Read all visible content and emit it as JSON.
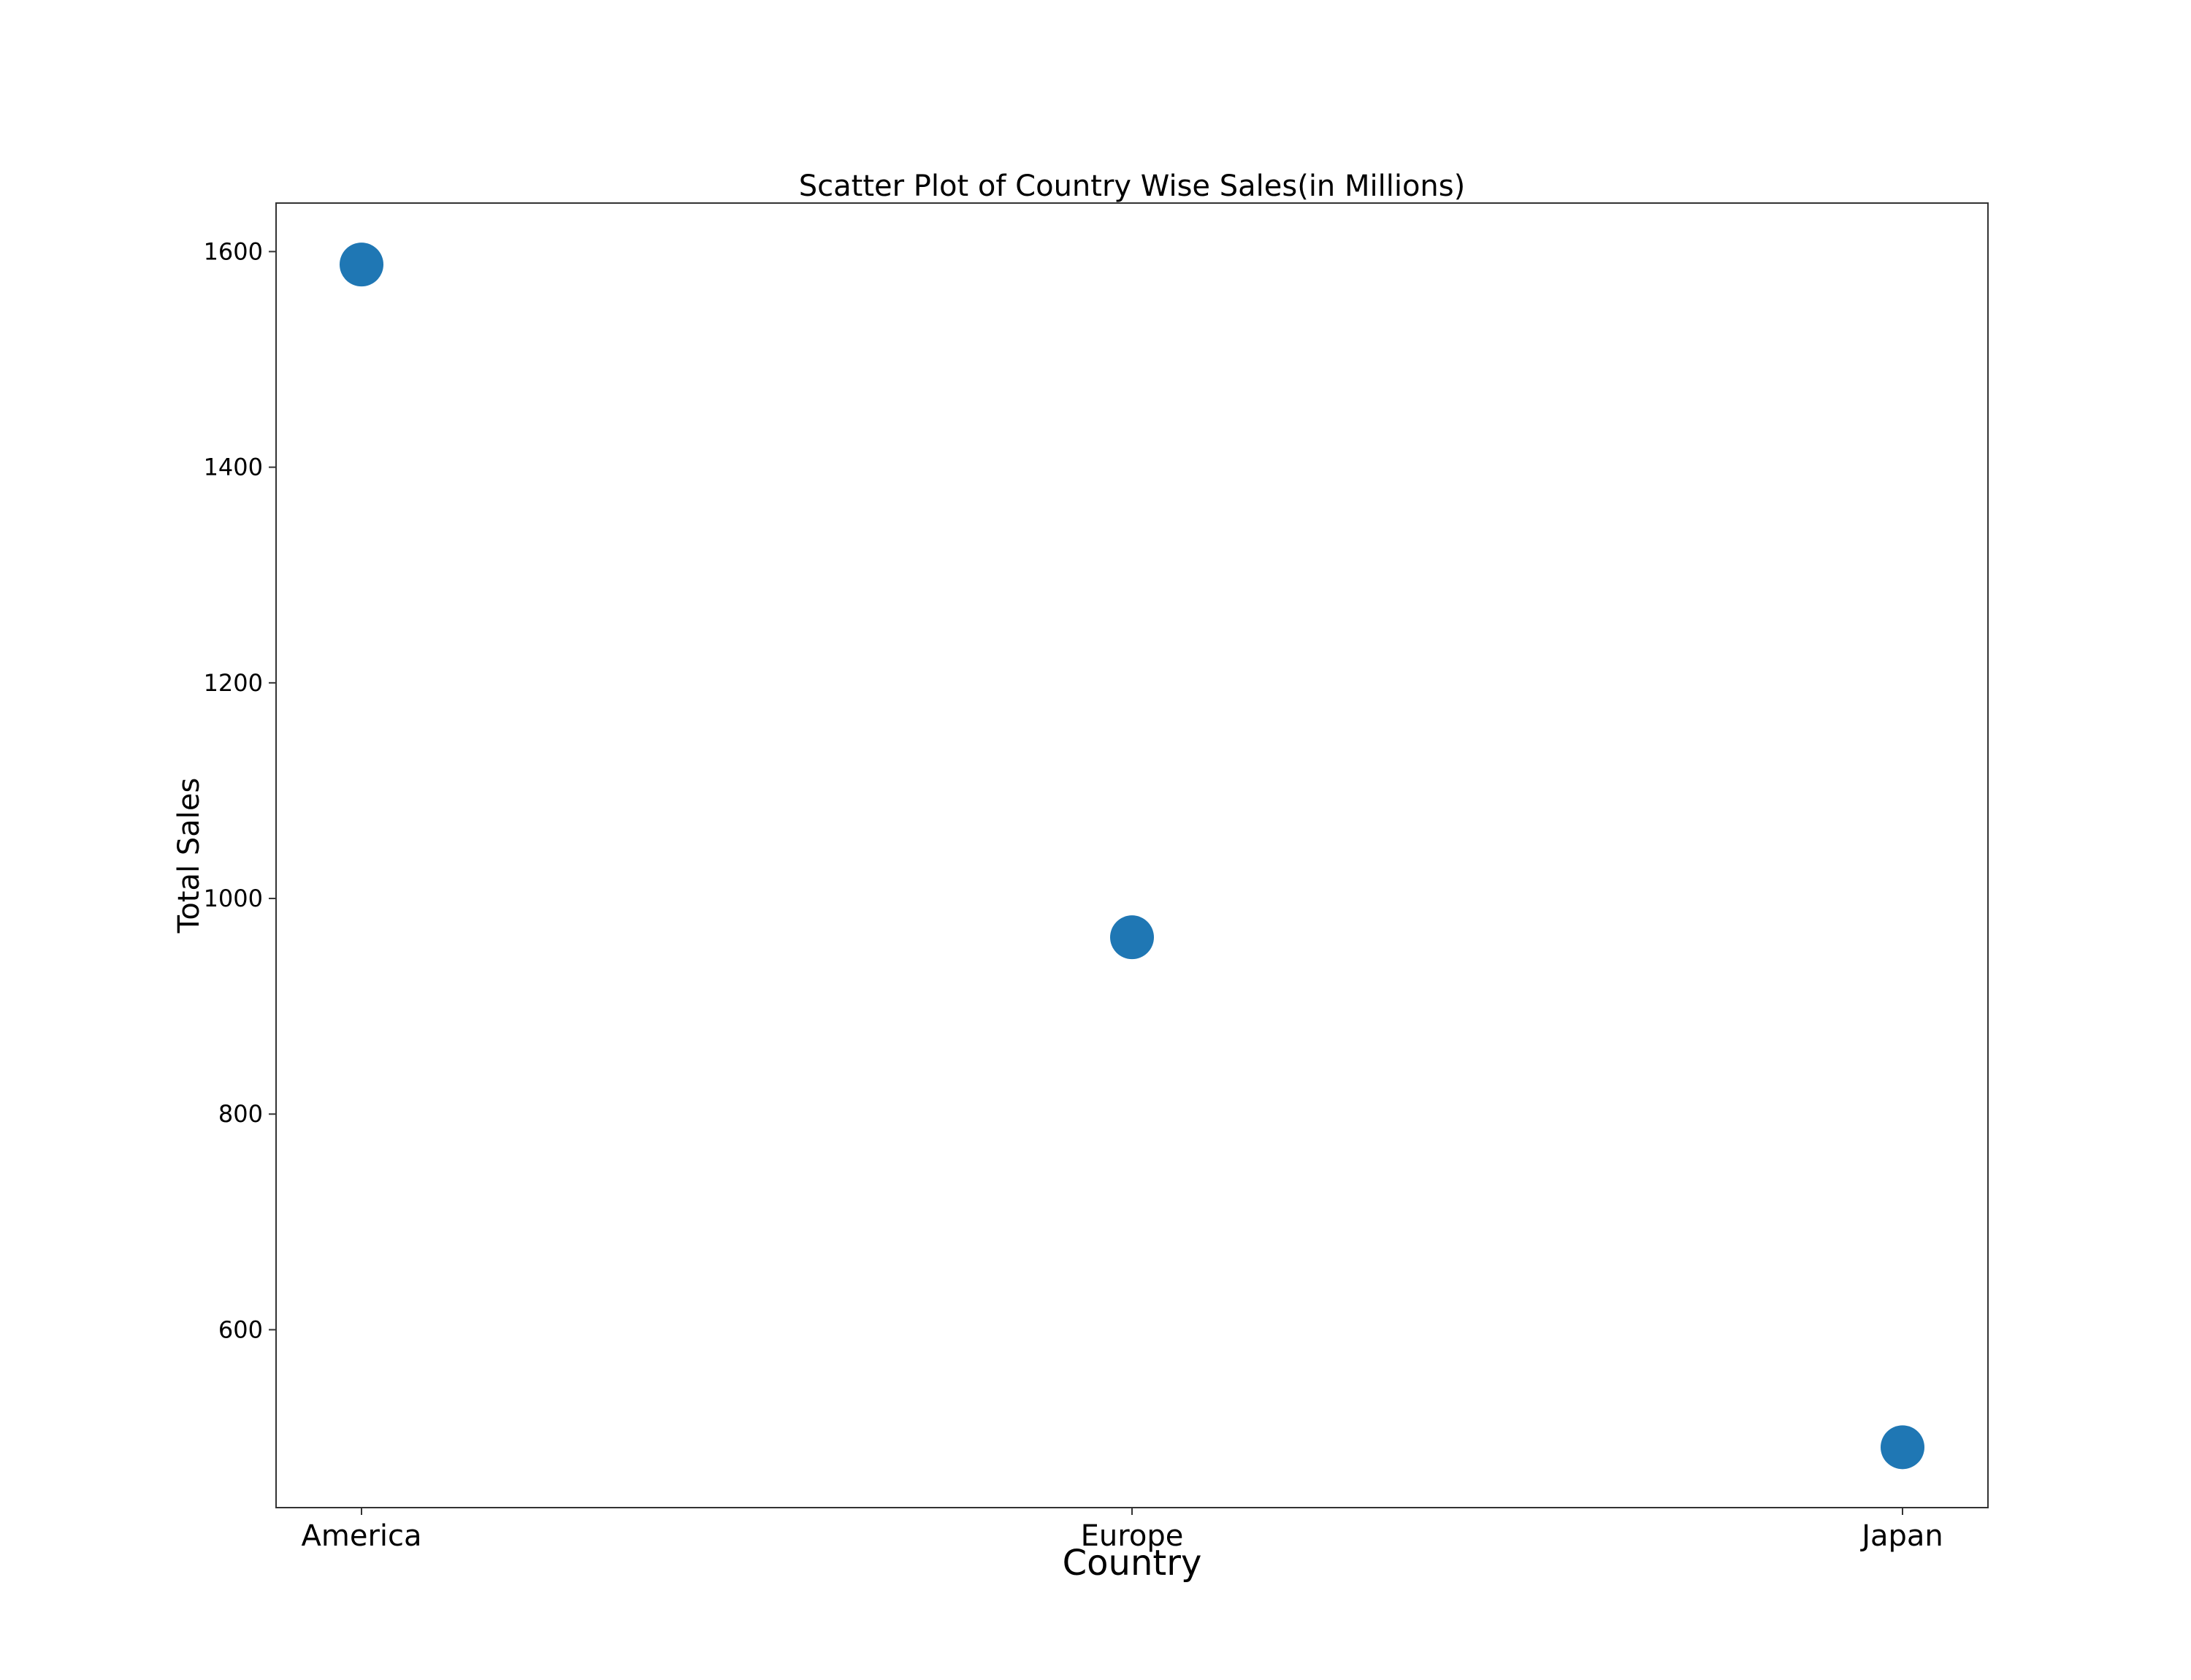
{
  "chart_data": {
    "type": "scatter",
    "title": "Scatter Plot  of Country Wise Sales(in Millions)",
    "xlabel": "Country",
    "ylabel": "Total Sales",
    "categories": [
      "America",
      "Europe",
      "Japan"
    ],
    "values": [
      1588,
      964,
      491
    ],
    "ylim": [
      435,
      1645
    ],
    "yticks": [
      600,
      800,
      1000,
      1200,
      1400,
      1600
    ],
    "grid": false,
    "legend": "none",
    "marker_color": "#1f77b4"
  }
}
